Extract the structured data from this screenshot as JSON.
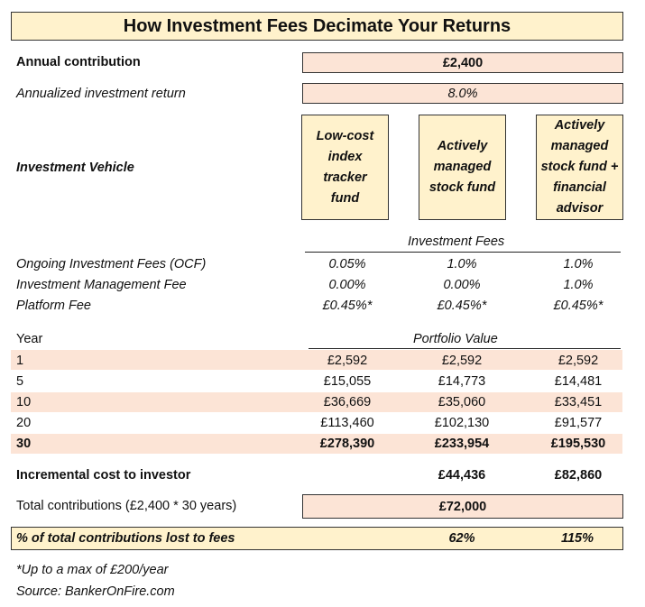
{
  "title": "How Investment Fees Decimate Your Returns",
  "annual_contribution": {
    "label": "Annual contribution",
    "value": "£2,400"
  },
  "annualized_return": {
    "label": "Annualized investment return",
    "value": "8.0%"
  },
  "investment_vehicle": {
    "label": "Investment Vehicle",
    "options": [
      "Low-cost index tracker fund",
      "Actively managed stock fund",
      "Actively managed stock fund + financial advisor"
    ]
  },
  "fees": {
    "header": "Investment Fees",
    "rows": [
      {
        "label": "Ongoing Investment Fees (OCF)",
        "values": [
          "0.05%",
          "1.0%",
          "1.0%"
        ]
      },
      {
        "label": "Investment Management Fee",
        "values": [
          "0.00%",
          "0.00%",
          "1.0%"
        ]
      },
      {
        "label": "Platform Fee",
        "values": [
          "£0.45%*",
          "£0.45%*",
          "£0.45%*"
        ]
      }
    ]
  },
  "portfolio": {
    "year_label": "Year",
    "header": "Portfolio Value",
    "rows": [
      {
        "year": "1",
        "values": [
          "£2,592",
          "£2,592",
          "£2,592"
        ]
      },
      {
        "year": "5",
        "values": [
          "£15,055",
          "£14,773",
          "£14,481"
        ]
      },
      {
        "year": "10",
        "values": [
          "£36,669",
          "£35,060",
          "£33,451"
        ]
      },
      {
        "year": "20",
        "values": [
          "£113,460",
          "£102,130",
          "£91,577"
        ]
      },
      {
        "year": "30",
        "values": [
          "£278,390",
          "£233,954",
          "£195,530"
        ]
      }
    ]
  },
  "incremental_cost": {
    "label": "Incremental cost to investor",
    "values": [
      "£44,436",
      "£82,860"
    ]
  },
  "total_contributions": {
    "label": "Total contributions (£2,400 * 30 years)",
    "value": "£72,000"
  },
  "pct_lost": {
    "label": "% of total contributions lost to fees",
    "values": [
      "62%",
      "115%"
    ]
  },
  "footnote": "*Up to a max of £200/year",
  "source": "Source: BankerOnFire.com",
  "colors": {
    "pink": "#fce4d6",
    "cream": "#fff2cc"
  }
}
